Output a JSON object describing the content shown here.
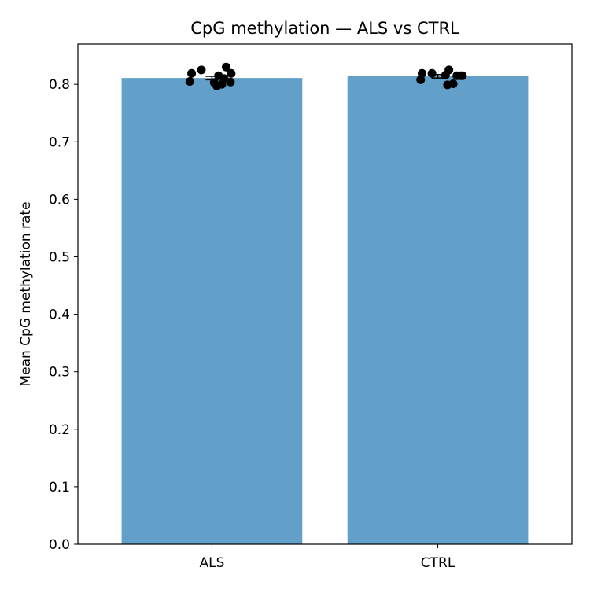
{
  "chart_data": {
    "type": "bar",
    "title": "CpG methylation — ALS vs CTRL",
    "xlabel": "",
    "ylabel": "Mean CpG methylation rate",
    "categories": [
      "ALS",
      "CTRL"
    ],
    "values": [
      0.811,
      0.814
    ],
    "error": [
      0.003,
      0.003
    ],
    "points": [
      [
        0.805,
        0.819,
        0.825,
        0.803,
        0.797,
        0.815,
        0.8,
        0.81,
        0.83,
        0.804,
        0.819
      ],
      [
        0.808,
        0.819,
        0.819,
        0.816,
        0.799,
        0.825,
        0.801,
        0.815,
        0.815,
        0.815
      ]
    ],
    "ylim": [
      0,
      0.87
    ],
    "yticks": [
      0.0,
      0.1,
      0.2,
      0.3,
      0.4,
      0.5,
      0.6,
      0.7,
      0.8
    ],
    "grid": false,
    "colors": {
      "bar": "#62a0ca",
      "points": "#000000"
    }
  }
}
